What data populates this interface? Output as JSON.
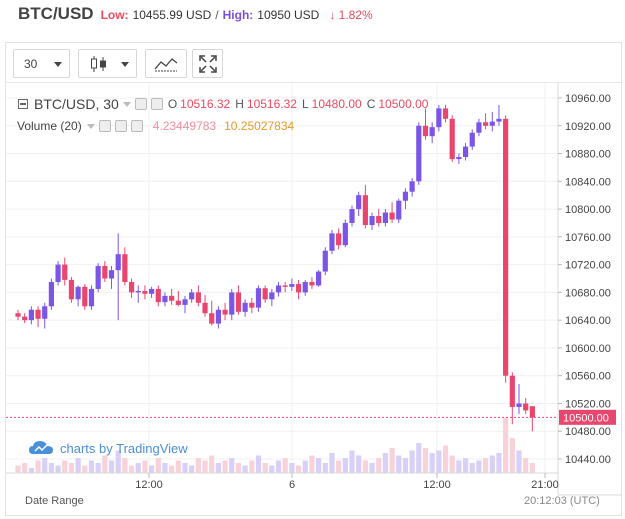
{
  "header": {
    "pair": "BTC/USD",
    "low_label": "Low:",
    "low_value": "10455.99 USD",
    "separator": "/",
    "high_label": "High:",
    "high_value": "10950 USD",
    "change": "↓ 1.82%"
  },
  "toolbar": {
    "interval": "30",
    "icons": [
      "chevron-down-icon",
      "candlestick-icon",
      "chevron-down-icon",
      "indicators-icon",
      "fullscreen-icon"
    ]
  },
  "legend": {
    "symbol": "BTC/USD, 30",
    "open_label": "O",
    "open": "10516.32",
    "high_label": "H",
    "high": "10516.32",
    "low_label": "L",
    "low": "10480.00",
    "close_label": "C",
    "close": "10500.00",
    "volume_label": "Volume (20)",
    "volume_value": "4.23449783",
    "volume_ma": "10.25027834"
  },
  "price_axis": {
    "ticks": [
      "10960.00",
      "10920.00",
      "10880.00",
      "10840.00",
      "10800.00",
      "10760.00",
      "10720.00",
      "10680.00",
      "10640.00",
      "10600.00",
      "10560.00",
      "10520.00",
      "10480.00",
      "10440.00"
    ],
    "last_price": "10500.00"
  },
  "time_axis": {
    "ticks": [
      "12:00",
      "6",
      "12:00",
      "21:00"
    ]
  },
  "watermark": "charts by TradingView",
  "footer": {
    "date_range": "Date Range",
    "clock": "20:12:03 (UTC)"
  },
  "colors": {
    "up": "#7b56e6",
    "down": "#e8466f",
    "last_price_line": "#e8466f",
    "watermark": "#4b8fd6"
  },
  "chart_data": {
    "type": "candlestick",
    "ylim": [
      10430,
      10970
    ],
    "candles": [
      [
        10650,
        10655,
        10640,
        10645
      ],
      [
        10645,
        10650,
        10636,
        10640
      ],
      [
        10640,
        10660,
        10634,
        10655
      ],
      [
        10655,
        10660,
        10630,
        10642
      ],
      [
        10642,
        10665,
        10628,
        10660
      ],
      [
        10660,
        10700,
        10655,
        10695
      ],
      [
        10695,
        10725,
        10690,
        10720
      ],
      [
        10720,
        10730,
        10690,
        10698
      ],
      [
        10698,
        10702,
        10665,
        10670
      ],
      [
        10670,
        10690,
        10660,
        10688
      ],
      [
        10688,
        10692,
        10655,
        10660
      ],
      [
        10660,
        10690,
        10655,
        10685
      ],
      [
        10685,
        10722,
        10680,
        10718
      ],
      [
        10718,
        10725,
        10695,
        10700
      ],
      [
        10700,
        10718,
        10685,
        10712
      ],
      [
        10712,
        10765,
        10640,
        10735
      ],
      [
        10735,
        10745,
        10690,
        10695
      ],
      [
        10695,
        10700,
        10672,
        10680
      ],
      [
        10680,
        10690,
        10665,
        10682
      ],
      [
        10682,
        10690,
        10670,
        10678
      ],
      [
        10678,
        10688,
        10672,
        10685
      ],
      [
        10685,
        10690,
        10660,
        10666
      ],
      [
        10666,
        10680,
        10660,
        10675
      ],
      [
        10675,
        10685,
        10662,
        10668
      ],
      [
        10668,
        10682,
        10660,
        10662
      ],
      [
        10662,
        10675,
        10650,
        10670
      ],
      [
        10670,
        10685,
        10665,
        10680
      ],
      [
        10680,
        10690,
        10660,
        10665
      ],
      [
        10665,
        10676,
        10645,
        10650
      ],
      [
        10650,
        10668,
        10632,
        10635
      ],
      [
        10635,
        10660,
        10628,
        10655
      ],
      [
        10655,
        10665,
        10640,
        10648
      ],
      [
        10648,
        10685,
        10640,
        10680
      ],
      [
        10680,
        10690,
        10648,
        10652
      ],
      [
        10652,
        10670,
        10645,
        10665
      ],
      [
        10665,
        10672,
        10650,
        10658
      ],
      [
        10658,
        10690,
        10652,
        10686
      ],
      [
        10686,
        10690,
        10665,
        10670
      ],
      [
        10670,
        10685,
        10660,
        10680
      ],
      [
        10680,
        10695,
        10674,
        10690
      ],
      [
        10690,
        10695,
        10680,
        10688
      ],
      [
        10688,
        10700,
        10682,
        10692
      ],
      [
        10692,
        10698,
        10670,
        10680
      ],
      [
        10680,
        10698,
        10675,
        10695
      ],
      [
        10695,
        10702,
        10685,
        10690
      ],
      [
        10690,
        10712,
        10688,
        10710
      ],
      [
        10710,
        10745,
        10705,
        10740
      ],
      [
        10740,
        10770,
        10735,
        10765
      ],
      [
        10765,
        10772,
        10742,
        10748
      ],
      [
        10748,
        10785,
        10745,
        10780
      ],
      [
        10780,
        10805,
        10775,
        10800
      ],
      [
        10800,
        10825,
        10790,
        10820
      ],
      [
        10820,
        10835,
        10772,
        10777
      ],
      [
        10777,
        10795,
        10770,
        10790
      ],
      [
        10790,
        10800,
        10775,
        10780
      ],
      [
        10780,
        10800,
        10775,
        10795
      ],
      [
        10795,
        10810,
        10780,
        10785
      ],
      [
        10785,
        10815,
        10780,
        10812
      ],
      [
        10812,
        10830,
        10800,
        10825
      ],
      [
        10825,
        10845,
        10818,
        10840
      ],
      [
        10840,
        10925,
        10835,
        10920
      ],
      [
        10920,
        10945,
        10900,
        10905
      ],
      [
        10905,
        10925,
        10895,
        10918
      ],
      [
        10918,
        10950,
        10912,
        10945
      ],
      [
        10945,
        10950,
        10925,
        10930
      ],
      [
        10930,
        10935,
        10868,
        10872
      ],
      [
        10872,
        10880,
        10865,
        10875
      ],
      [
        10875,
        10895,
        10870,
        10890
      ],
      [
        10890,
        10915,
        10885,
        10910
      ],
      [
        10910,
        10930,
        10905,
        10925
      ],
      [
        10925,
        10938,
        10915,
        10920
      ],
      [
        10920,
        10940,
        10912,
        10926
      ],
      [
        10926,
        10950,
        10920,
        10930
      ],
      [
        10930,
        10935,
        10550,
        10560
      ],
      [
        10560,
        10565,
        10490,
        10515
      ],
      [
        10515,
        10548,
        10505,
        10520
      ],
      [
        10520,
        10528,
        10505,
        10510
      ],
      [
        10516,
        10516,
        10480,
        10500
      ]
    ],
    "volumes": [
      3,
      4,
      2,
      5,
      6,
      4,
      3,
      5,
      4,
      6,
      3,
      5,
      4,
      7,
      5,
      9,
      6,
      3,
      4,
      5,
      3,
      6,
      4,
      3,
      5,
      4,
      3,
      6,
      5,
      7,
      4,
      5,
      6,
      4,
      3,
      5,
      7,
      4,
      3,
      5,
      6,
      4,
      3,
      5,
      7,
      6,
      4,
      8,
      5,
      6,
      9,
      7,
      5,
      4,
      6,
      8,
      10,
      7,
      6,
      9,
      12,
      10,
      8,
      9,
      11,
      7,
      5,
      6,
      4,
      5,
      6,
      7,
      8,
      22,
      14,
      9,
      6,
      4
    ]
  }
}
